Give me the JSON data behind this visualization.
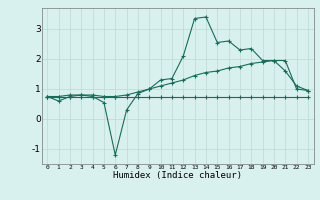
{
  "xlabel": "Humidex (Indice chaleur)",
  "x_values": [
    0,
    1,
    2,
    3,
    4,
    5,
    6,
    7,
    8,
    9,
    10,
    11,
    12,
    13,
    14,
    15,
    16,
    17,
    18,
    19,
    20,
    21,
    22,
    23
  ],
  "line1": [
    0.75,
    0.6,
    0.75,
    0.8,
    0.75,
    0.55,
    -1.2,
    0.3,
    0.85,
    1.0,
    1.3,
    1.35,
    2.1,
    3.35,
    3.4,
    2.55,
    2.6,
    2.3,
    2.35,
    1.95,
    1.95,
    1.6,
    1.1,
    0.95
  ],
  "line2": [
    0.75,
    0.75,
    0.8,
    0.8,
    0.8,
    0.75,
    0.75,
    0.8,
    0.9,
    1.0,
    1.1,
    1.2,
    1.3,
    1.45,
    1.55,
    1.6,
    1.7,
    1.75,
    1.85,
    1.9,
    1.95,
    1.95,
    1.0,
    0.95
  ],
  "line3": [
    0.75,
    0.75,
    0.75,
    0.75,
    0.75,
    0.75,
    0.75,
    0.75,
    0.75,
    0.75,
    0.75,
    0.75,
    0.75,
    0.75,
    0.75,
    0.75,
    0.75,
    0.75,
    0.75,
    0.75,
    0.75,
    0.75,
    0.75,
    0.75
  ],
  "line_color": "#1a6b5a",
  "bg_color": "#d8f0ee",
  "grid_color": "#c0d8d4",
  "ylim": [
    -1.5,
    3.7
  ],
  "yticks": [
    -1,
    0,
    1,
    2,
    3
  ],
  "xlim": [
    -0.5,
    23.5
  ]
}
